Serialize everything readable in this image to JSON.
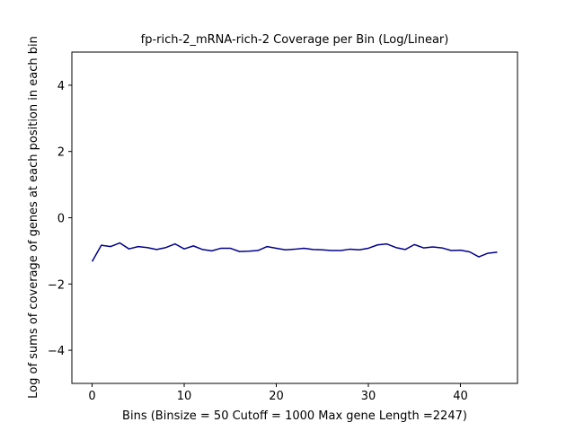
{
  "chart_data": {
    "type": "line",
    "title": "fp-rich-2_mRNA-rich-2 Coverage per Bin (Log/Linear)",
    "xlabel": "Bins  (Binsize = 50 Cutoff = 1000 Max gene Length =2247)",
    "ylabel": "Log of sums of coverage of genes at each position in each bin",
    "xlim": [
      -2.2,
      46.2
    ],
    "ylim": [
      -5,
      5
    ],
    "xticks": [
      0,
      10,
      20,
      30,
      40
    ],
    "yticks": [
      -4,
      -2,
      0,
      2,
      4
    ],
    "grid": false,
    "series_color": "#00008b",
    "x": [
      0,
      1,
      2,
      3,
      4,
      5,
      6,
      7,
      8,
      9,
      10,
      11,
      12,
      13,
      14,
      15,
      16,
      17,
      18,
      19,
      20,
      21,
      22,
      23,
      24,
      25,
      26,
      27,
      28,
      29,
      30,
      31,
      32,
      33,
      34,
      35,
      36,
      37,
      38,
      39,
      40,
      41,
      42,
      43,
      44
    ],
    "y": [
      -1.32,
      -0.83,
      -0.87,
      -0.76,
      -0.94,
      -0.87,
      -0.9,
      -0.96,
      -0.9,
      -0.79,
      -0.94,
      -0.85,
      -0.96,
      -1.0,
      -0.92,
      -0.92,
      -1.02,
      -1.01,
      -0.99,
      -0.87,
      -0.92,
      -0.97,
      -0.95,
      -0.92,
      -0.96,
      -0.97,
      -0.99,
      -0.99,
      -0.95,
      -0.97,
      -0.92,
      -0.82,
      -0.79,
      -0.9,
      -0.96,
      -0.81,
      -0.91,
      -0.88,
      -0.91,
      -0.99,
      -0.98,
      -1.03,
      -1.18,
      -1.07,
      -1.04
    ]
  }
}
